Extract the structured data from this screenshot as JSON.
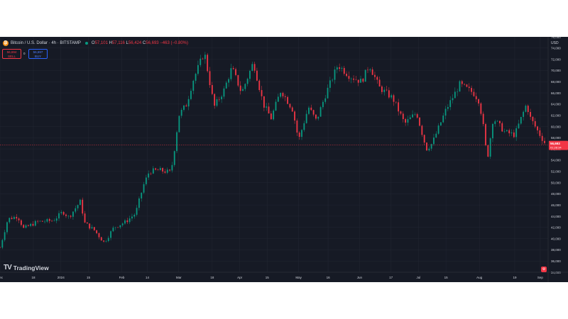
{
  "header": {
    "symbol": "Bitcoin / U.S. Dollar · 4h · BITSTAMP",
    "open_label": "O",
    "open": "57,101",
    "high_label": "H",
    "high": "57,116",
    "low_label": "L",
    "low": "56,424",
    "close_label": "C",
    "close": "56,693",
    "change": "−463 (−0.80%)"
  },
  "order": {
    "sell_price": "56,694",
    "sell_label": "SELL",
    "spread": "0",
    "buy_price": "56,697",
    "buy_label": "BUY"
  },
  "currency": "USD",
  "branding": {
    "logo_text": "TradingView"
  },
  "current": {
    "price_label": "56,693",
    "countdown": "01:28:34"
  },
  "colors": {
    "up": "#089981",
    "down": "#f23645",
    "background": "#161a25",
    "grid": "#232733",
    "text": "#d1d4dc"
  },
  "icons": {
    "settings": "tv-settings-icon",
    "logo": "tradingview-logo-icon",
    "coin": "bitcoin-icon"
  },
  "chart_data": {
    "type": "candlestick",
    "interval": "4h",
    "y_axis": {
      "min": 34000,
      "max": 76000,
      "step": 2000,
      "position": "right",
      "tick_labels": [
        "34,000",
        "36,000",
        "38,000",
        "40,000",
        "42,000",
        "44,000",
        "46,000",
        "48,000",
        "50,000",
        "52,000",
        "54,000",
        "56,000",
        "58,000",
        "60,000",
        "62,000",
        "64,000",
        "66,000",
        "68,000",
        "70,000",
        "72,000",
        "74,000",
        "76,000"
      ]
    },
    "x_axis": {
      "start": "2023-12-01",
      "end": "2024-09-05",
      "ticks": [
        {
          "date": "2023-12-01",
          "label": "Dec"
        },
        {
          "date": "2023-12-18",
          "label": "18"
        },
        {
          "date": "2024-01-01",
          "label": "2024"
        },
        {
          "date": "2024-01-15",
          "label": "15"
        },
        {
          "date": "2024-02-01",
          "label": "Feb"
        },
        {
          "date": "2024-02-14",
          "label": "14"
        },
        {
          "date": "2024-03-01",
          "label": "Mar"
        },
        {
          "date": "2024-03-18",
          "label": "18"
        },
        {
          "date": "2024-04-01",
          "label": "Apr"
        },
        {
          "date": "2024-04-15",
          "label": "15"
        },
        {
          "date": "2024-05-01",
          "label": "May"
        },
        {
          "date": "2024-05-16",
          "label": "16"
        },
        {
          "date": "2024-06-01",
          "label": "Jun"
        },
        {
          "date": "2024-06-17",
          "label": "17"
        },
        {
          "date": "2024-07-01",
          "label": "Jul"
        },
        {
          "date": "2024-07-15",
          "label": "15"
        },
        {
          "date": "2024-08-01",
          "label": "Aug"
        },
        {
          "date": "2024-08-19",
          "label": "19"
        },
        {
          "date": "2024-09-01",
          "label": "Sep"
        }
      ]
    },
    "last_price": 56693,
    "grid": true,
    "close_path": [
      {
        "date": "2023-12-01",
        "close": 38400
      },
      {
        "date": "2023-12-05",
        "close": 43500
      },
      {
        "date": "2023-12-10",
        "close": 44000
      },
      {
        "date": "2023-12-13",
        "close": 41800
      },
      {
        "date": "2023-12-20",
        "close": 43000
      },
      {
        "date": "2023-12-28",
        "close": 43200
      },
      {
        "date": "2024-01-02",
        "close": 44800
      },
      {
        "date": "2024-01-05",
        "close": 43800
      },
      {
        "date": "2024-01-11",
        "close": 46700
      },
      {
        "date": "2024-01-13",
        "close": 42800
      },
      {
        "date": "2024-01-18",
        "close": 41500
      },
      {
        "date": "2024-01-23",
        "close": 39300
      },
      {
        "date": "2024-01-28",
        "close": 42000
      },
      {
        "date": "2024-02-03",
        "close": 43000
      },
      {
        "date": "2024-02-08",
        "close": 44500
      },
      {
        "date": "2024-02-12",
        "close": 49500
      },
      {
        "date": "2024-02-15",
        "close": 52000
      },
      {
        "date": "2024-02-20",
        "close": 52200
      },
      {
        "date": "2024-02-26",
        "close": 51800
      },
      {
        "date": "2024-02-28",
        "close": 56500
      },
      {
        "date": "2024-03-01",
        "close": 62000
      },
      {
        "date": "2024-03-05",
        "close": 64000
      },
      {
        "date": "2024-03-08",
        "close": 68000
      },
      {
        "date": "2024-03-14",
        "close": 73300
      },
      {
        "date": "2024-03-19",
        "close": 63500
      },
      {
        "date": "2024-03-24",
        "close": 66500
      },
      {
        "date": "2024-03-28",
        "close": 70500
      },
      {
        "date": "2024-04-02",
        "close": 66000
      },
      {
        "date": "2024-04-08",
        "close": 71500
      },
      {
        "date": "2024-04-13",
        "close": 64000
      },
      {
        "date": "2024-04-17",
        "close": 61500
      },
      {
        "date": "2024-04-22",
        "close": 66500
      },
      {
        "date": "2024-04-28",
        "close": 63000
      },
      {
        "date": "2024-05-01",
        "close": 57500
      },
      {
        "date": "2024-05-06",
        "close": 63500
      },
      {
        "date": "2024-05-10",
        "close": 61000
      },
      {
        "date": "2024-05-15",
        "close": 66000
      },
      {
        "date": "2024-05-21",
        "close": 71000
      },
      {
        "date": "2024-05-27",
        "close": 69000
      },
      {
        "date": "2024-06-02",
        "close": 68000
      },
      {
        "date": "2024-06-06",
        "close": 71000
      },
      {
        "date": "2024-06-11",
        "close": 67000
      },
      {
        "date": "2024-06-18",
        "close": 65000
      },
      {
        "date": "2024-06-24",
        "close": 60500
      },
      {
        "date": "2024-06-30",
        "close": 62500
      },
      {
        "date": "2024-07-05",
        "close": 56000
      },
      {
        "date": "2024-07-08",
        "close": 57000
      },
      {
        "date": "2024-07-15",
        "close": 63000
      },
      {
        "date": "2024-07-22",
        "close": 67500
      },
      {
        "date": "2024-07-29",
        "close": 66000
      },
      {
        "date": "2024-08-01",
        "close": 64500
      },
      {
        "date": "2024-08-03",
        "close": 60000
      },
      {
        "date": "2024-08-05",
        "close": 54000
      },
      {
        "date": "2024-08-08",
        "close": 61500
      },
      {
        "date": "2024-08-14",
        "close": 59000
      },
      {
        "date": "2024-08-19",
        "close": 58500
      },
      {
        "date": "2024-08-25",
        "close": 64000
      },
      {
        "date": "2024-08-27",
        "close": 61500
      },
      {
        "date": "2024-08-31",
        "close": 59000
      },
      {
        "date": "2024-09-04",
        "close": 56693
      }
    ]
  }
}
